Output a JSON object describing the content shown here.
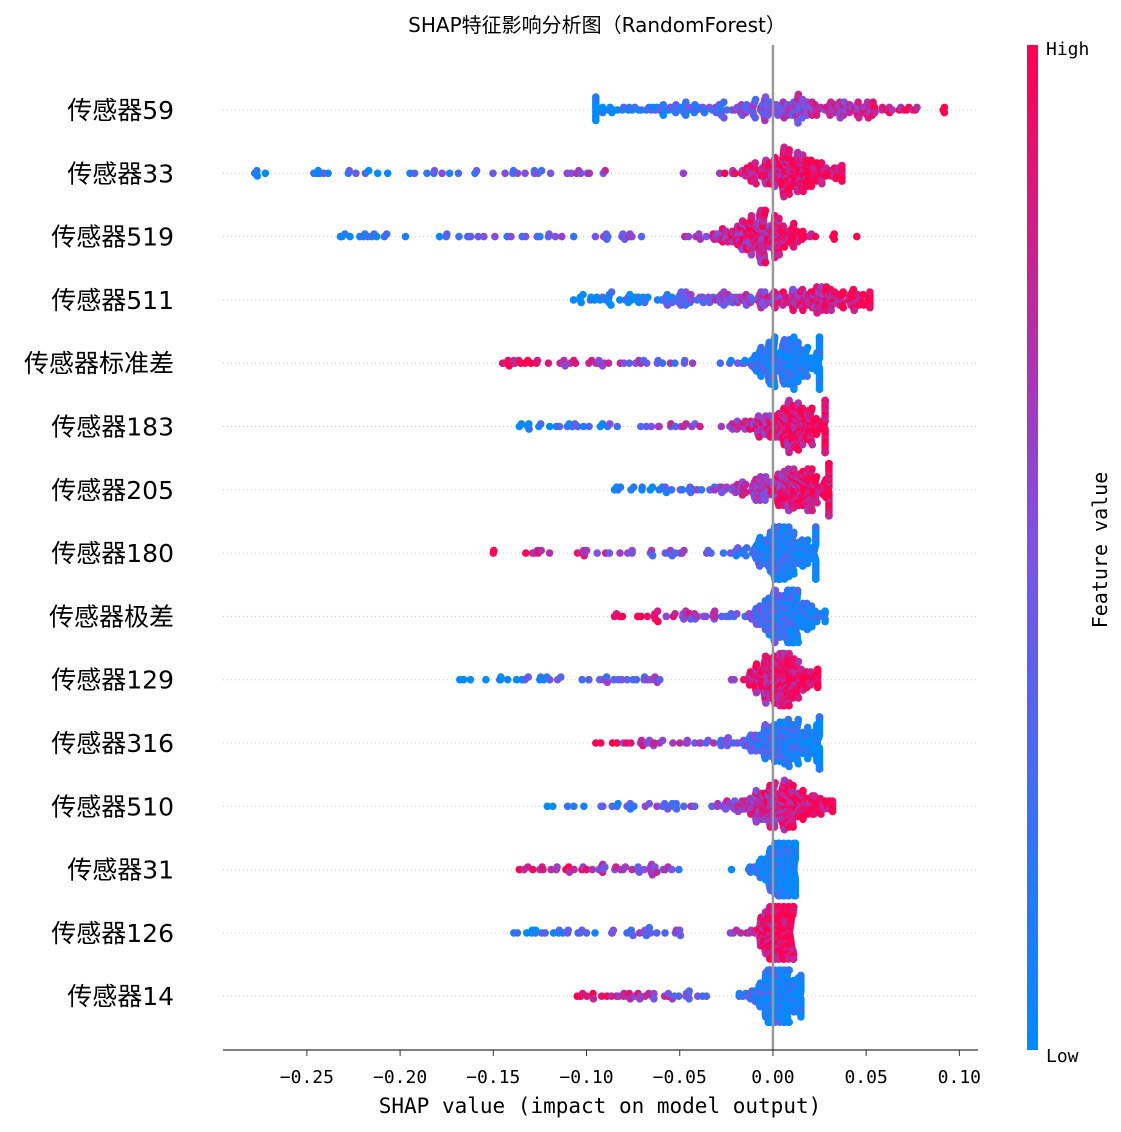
{
  "chart_data": {
    "type": "scatter",
    "subtype": "shap-beeswarm",
    "title": "SHAP特征影响分析图（RandomForest）",
    "xlabel": "SHAP value (impact on model output)",
    "ylabel": "",
    "xlim": [
      -0.295,
      0.11
    ],
    "x_ticks": [
      -0.25,
      -0.2,
      -0.15,
      -0.1,
      -0.05,
      0.0,
      0.05,
      0.1
    ],
    "x_tick_labels": [
      "−0.25",
      "−0.20",
      "−0.15",
      "−0.10",
      "−0.05",
      "0.00",
      "0.05",
      "0.10"
    ],
    "zero_line": 0,
    "grid": false,
    "colorbar": {
      "label": "Feature value",
      "high_label": "High",
      "low_label": "Low",
      "low_color": "#008bfb",
      "mid_color": "#7c52e6",
      "high_color": "#ff0051",
      "position": "right"
    },
    "features": [
      {
        "name": "传感器59",
        "min": -0.095,
        "max": 0.092,
        "mode": -0.035,
        "spread": 0.028,
        "high_side": "right",
        "density_peak": 0.02
      },
      {
        "name": "传感器33",
        "min": -0.278,
        "max": 0.037,
        "mode": 0.012,
        "spread": 0.012,
        "high_side": "right",
        "density_peak": 0.01
      },
      {
        "name": "传感器519",
        "min": -0.232,
        "max": 0.045,
        "mode": -0.007,
        "spread": 0.012,
        "high_side": "right",
        "density_peak": -0.005
      },
      {
        "name": "传感器511",
        "min": -0.107,
        "max": 0.052,
        "mode": -0.03,
        "spread": 0.02,
        "high_side": "right",
        "density_peak": 0.02
      },
      {
        "name": "传感器标准差",
        "min": -0.145,
        "max": 0.025,
        "mode": 0.008,
        "spread": 0.01,
        "high_side": "left",
        "density_peak": 0.005
      },
      {
        "name": "传感器183",
        "min": -0.136,
        "max": 0.028,
        "mode": 0.012,
        "spread": 0.012,
        "high_side": "right",
        "density_peak": 0.01
      },
      {
        "name": "传感器205",
        "min": -0.085,
        "max": 0.03,
        "mode": 0.01,
        "spread": 0.015,
        "high_side": "right",
        "density_peak": 0.01
      },
      {
        "name": "传感器180",
        "min": -0.15,
        "max": 0.023,
        "mode": 0.005,
        "spread": 0.01,
        "high_side": "left",
        "density_peak": 0.005
      },
      {
        "name": "传感器极差",
        "min": -0.085,
        "max": 0.028,
        "mode": 0.007,
        "spread": 0.008,
        "high_side": "left",
        "density_peak": 0.006
      },
      {
        "name": "传感器129",
        "min": -0.168,
        "max": 0.024,
        "mode": 0.004,
        "spread": 0.008,
        "high_side": "right",
        "density_peak": 0.003
      },
      {
        "name": "传感器316",
        "min": -0.095,
        "max": 0.025,
        "mode": 0.008,
        "spread": 0.012,
        "high_side": "left",
        "density_peak": 0.006
      },
      {
        "name": "传感器510",
        "min": -0.121,
        "max": 0.032,
        "mode": 0.005,
        "spread": 0.012,
        "high_side": "right",
        "density_peak": 0.003
      },
      {
        "name": "传感器31",
        "min": -0.136,
        "max": 0.012,
        "mode": 0.004,
        "spread": 0.006,
        "high_side": "left",
        "density_peak": 0.004
      },
      {
        "name": "传感器126",
        "min": -0.139,
        "max": 0.011,
        "mode": 0.002,
        "spread": 0.006,
        "high_side": "right",
        "density_peak": 0.002
      },
      {
        "name": "传感器14",
        "min": -0.105,
        "max": 0.015,
        "mode": 0.003,
        "spread": 0.006,
        "high_side": "left",
        "density_peak": 0.002
      }
    ]
  }
}
